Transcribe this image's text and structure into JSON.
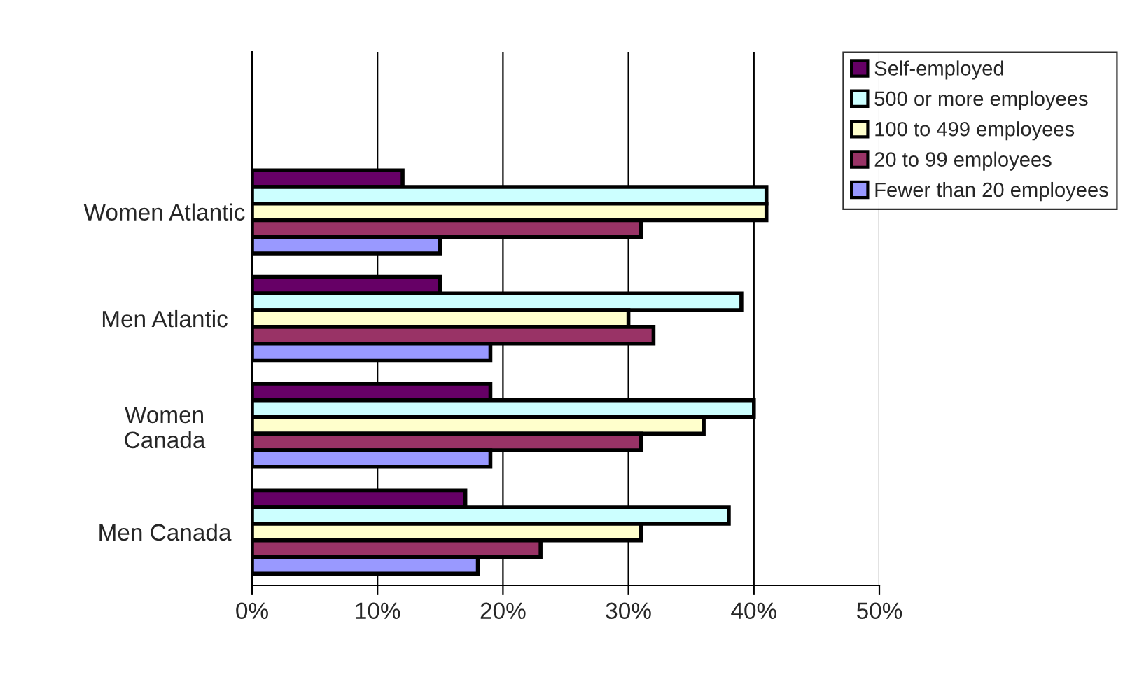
{
  "chart_data": {
    "type": "bar",
    "orientation": "horizontal",
    "categories": [
      null,
      "Women Atlantic",
      "Men Atlantic",
      "Women\nCanada",
      "Men Canada"
    ],
    "series": [
      {
        "name": "Self-employed",
        "color": "#660066",
        "values": [
          null,
          12,
          15,
          19,
          17
        ]
      },
      {
        "name": "500 or more employees",
        "color": "#ccffff",
        "values": [
          null,
          41,
          39,
          40,
          38
        ]
      },
      {
        "name": "100 to 499 employees",
        "color": "#ffffcc",
        "values": [
          null,
          41,
          30,
          36,
          31
        ]
      },
      {
        "name": "20 to 99 employees",
        "color": "#993366",
        "values": [
          null,
          31,
          32,
          31,
          23
        ]
      },
      {
        "name": "Fewer than 20 employees",
        "color": "#9999ff",
        "values": [
          null,
          15,
          19,
          19,
          18
        ]
      }
    ],
    "xlim": [
      0,
      50
    ],
    "xticks": [
      {
        "value": 0,
        "label": "0%"
      },
      {
        "value": 10,
        "label": "10%"
      },
      {
        "value": 20,
        "label": "20%"
      },
      {
        "value": 30,
        "label": "30%"
      },
      {
        "value": 40,
        "label": "40%"
      },
      {
        "value": 50,
        "label": "50%"
      }
    ],
    "grid": "x",
    "legend": "top right"
  }
}
